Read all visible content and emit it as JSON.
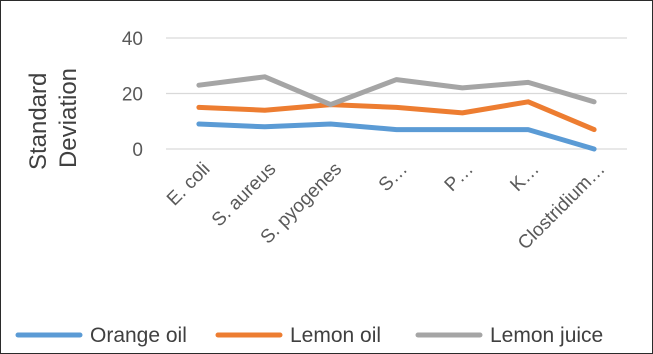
{
  "chart_data": {
    "type": "line",
    "title": "",
    "xlabel": "",
    "ylabel": "Standard Deviation",
    "ylabel_lines": [
      "Standard",
      "Deviation"
    ],
    "ylim": [
      0,
      40
    ],
    "yticks": [
      0,
      20,
      40
    ],
    "grid": true,
    "legend_position": "bottom",
    "categories": [
      "E. coli",
      "S. aureus",
      "S. pyogenes",
      "S…",
      "P…",
      "K…",
      "Clostridium…"
    ],
    "series": [
      {
        "name": "Orange oil",
        "color": "#5B9BD5",
        "values": [
          9,
          8,
          9,
          7,
          7,
          7,
          0
        ]
      },
      {
        "name": "Lemon oil",
        "color": "#ED7D31",
        "values": [
          15,
          14,
          16,
          15,
          13,
          17,
          7
        ]
      },
      {
        "name": "Lemon juice",
        "color": "#A5A5A5",
        "values": [
          23,
          26,
          16,
          25,
          22,
          24,
          17
        ]
      }
    ]
  }
}
